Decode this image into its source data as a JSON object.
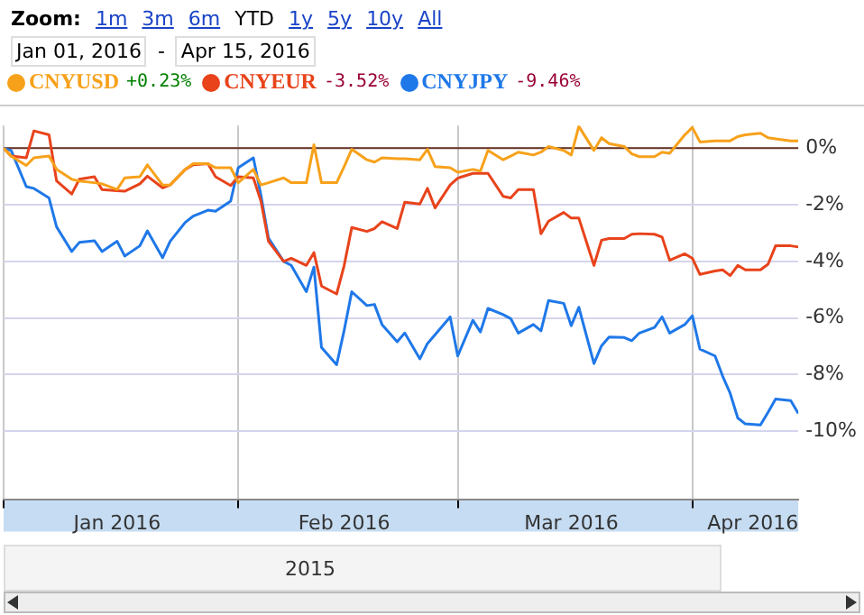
{
  "chart_data": {
    "type": "line",
    "x": [
      "2016-01-01",
      "2016-01-02",
      "2016-01-04",
      "2016-01-05",
      "2016-01-07",
      "2016-01-08",
      "2016-01-10",
      "2016-01-11",
      "2016-01-13",
      "2016-01-14",
      "2016-01-16",
      "2016-01-17",
      "2016-01-19",
      "2016-01-20",
      "2016-01-22",
      "2016-01-23",
      "2016-01-25",
      "2016-01-26",
      "2016-01-28",
      "2016-01-29",
      "2016-01-31",
      "2016-02-01",
      "2016-02-03",
      "2016-02-04",
      "2016-02-05",
      "2016-02-07",
      "2016-02-08",
      "2016-02-10",
      "2016-02-11",
      "2016-02-12",
      "2016-02-14",
      "2016-02-15",
      "2016-02-16",
      "2016-02-18",
      "2016-02-19",
      "2016-02-20",
      "2016-02-22",
      "2016-02-23",
      "2016-02-25",
      "2016-02-26",
      "2016-02-27",
      "2016-02-29",
      "2016-03-01",
      "2016-03-03",
      "2016-03-04",
      "2016-03-05",
      "2016-03-07",
      "2016-03-08",
      "2016-03-09",
      "2016-03-11",
      "2016-03-12",
      "2016-03-13",
      "2016-03-15",
      "2016-03-16",
      "2016-03-17",
      "2016-03-19",
      "2016-03-20",
      "2016-03-21",
      "2016-03-23",
      "2016-03-24",
      "2016-03-25",
      "2016-03-27",
      "2016-03-28",
      "2016-03-29",
      "2016-03-31",
      "2016-04-01",
      "2016-04-02",
      "2016-04-04",
      "2016-04-05",
      "2016-04-06",
      "2016-04-07",
      "2016-04-08",
      "2016-04-10",
      "2016-04-11",
      "2016-04-12",
      "2016-04-14",
      "2016-04-15"
    ],
    "series": [
      {
        "name": "CNYUSD",
        "color": "#f7a11a",
        "values": [
          0,
          -0.28,
          -0.61,
          -0.34,
          -0.28,
          -0.75,
          -1.1,
          -1.16,
          -1.22,
          -1.26,
          -1.46,
          -1.05,
          -1.01,
          -0.59,
          -1.3,
          -1.3,
          -0.75,
          -0.55,
          -0.55,
          -0.69,
          -0.69,
          -1.22,
          -0.75,
          -1.3,
          -1.22,
          -1.05,
          -1.22,
          -1.22,
          0.12,
          -1.22,
          -1.22,
          -0.65,
          -0.04,
          -0.41,
          -0.49,
          -0.34,
          -0.37,
          -0.37,
          -0.41,
          -0.04,
          -0.65,
          -0.69,
          -0.85,
          -0.75,
          -0.81,
          -0.08,
          -0.41,
          -0.28,
          -0.14,
          -0.24,
          -0.14,
          0.06,
          -0.08,
          -0.24,
          0.77,
          -0.08,
          0.37,
          0.16,
          0.06,
          -0.2,
          -0.3,
          -0.3,
          -0.14,
          -0.18,
          0.47,
          0.73,
          0.22,
          0.26,
          0.26,
          0.26,
          0.41,
          0.47,
          0.53,
          0.37,
          0.33,
          0.26,
          0.26
        ]
      },
      {
        "name": "CNYEUR",
        "color": "#e8431b",
        "values": [
          0,
          -0.28,
          -0.34,
          0.61,
          0.47,
          -1.16,
          -1.62,
          -1.1,
          -1.01,
          -1.46,
          -1.5,
          -1.52,
          -1.26,
          -0.99,
          -1.4,
          -1.3,
          -0.75,
          -0.59,
          -0.55,
          -1.01,
          -1.32,
          -1.01,
          -1.05,
          -1.87,
          -3.29,
          -4.0,
          -3.89,
          -4.14,
          -3.69,
          -4.87,
          -5.15,
          -4.14,
          -2.8,
          -2.94,
          -2.84,
          -2.6,
          -2.84,
          -1.91,
          -1.97,
          -1.42,
          -2.11,
          -1.3,
          -1.06,
          -0.89,
          -0.89,
          -0.89,
          -1.7,
          -1.76,
          -1.46,
          -1.46,
          -3.02,
          -2.58,
          -2.27,
          -2.47,
          -2.47,
          -4.14,
          -3.25,
          -3.19,
          -3.19,
          -3.04,
          -3.02,
          -3.04,
          -3.14,
          -3.96,
          -3.73,
          -3.89,
          -4.46,
          -4.34,
          -4.3,
          -4.5,
          -4.14,
          -4.3,
          -4.3,
          -4.1,
          -3.45,
          -3.45,
          -3.49
        ]
      },
      {
        "name": "CNYJPY",
        "color": "#1f78e8",
        "values": [
          0,
          -0.08,
          -1.36,
          -1.42,
          -1.76,
          -2.78,
          -3.65,
          -3.33,
          -3.27,
          -3.65,
          -3.29,
          -3.81,
          -3.45,
          -2.92,
          -3.87,
          -3.29,
          -2.62,
          -2.41,
          -2.19,
          -2.23,
          -1.87,
          -0.69,
          -0.34,
          -1.66,
          -3.18,
          -4.0,
          -4.14,
          -5.07,
          -4.2,
          -7.04,
          -7.65,
          -6.43,
          -5.07,
          -5.56,
          -5.52,
          -6.23,
          -6.84,
          -6.53,
          -7.44,
          -6.9,
          -6.59,
          -5.96,
          -7.34,
          -6.08,
          -6.49,
          -5.66,
          -5.88,
          -6.02,
          -6.53,
          -6.23,
          -6.45,
          -5.38,
          -5.48,
          -6.27,
          -5.62,
          -7.61,
          -6.98,
          -6.67,
          -6.69,
          -6.8,
          -6.53,
          -6.33,
          -5.96,
          -6.53,
          -6.23,
          -5.92,
          -7.1,
          -7.34,
          -8.05,
          -8.66,
          -9.53,
          -9.74,
          -9.78,
          -9.33,
          -8.86,
          -8.92,
          -9.37
        ]
      }
    ],
    "xlim": [
      "2016-01-01",
      "2016-04-15"
    ],
    "xticks": [
      {
        "value": "2016-01-01",
        "label": null
      },
      {
        "value": "2016-01-16",
        "label": "Jan 2016"
      },
      {
        "value": "2016-02-01",
        "label": null
      },
      {
        "value": "2016-02-15",
        "label": "Feb 2016"
      },
      {
        "value": "2016-03-01",
        "label": null
      },
      {
        "value": "2016-03-16",
        "label": "Mar 2016"
      },
      {
        "value": "2016-04-01",
        "label": null
      },
      {
        "value": "2016-04-09",
        "label": "Apr 2016"
      }
    ],
    "ylim": [
      -12.4,
      0.8
    ],
    "yticks": [
      {
        "value": 0,
        "label": "0%"
      },
      {
        "value": -2,
        "label": "-2%"
      },
      {
        "value": -4,
        "label": "-4%"
      },
      {
        "value": -6,
        "label": "-6%"
      },
      {
        "value": -8,
        "label": "-8%"
      },
      {
        "value": -10,
        "label": "-10%"
      }
    ],
    "ref_lines": [
      {
        "axis": "y",
        "value": 0,
        "color": "#663322"
      }
    ],
    "grid": true,
    "legend": "top left",
    "marker": "none",
    "line_style": "solid",
    "annotations": [
      "Zoom:",
      "1m",
      "3m",
      "6m",
      "YTD",
      "1y",
      "5y",
      "10y",
      "All",
      "Jan 01, 2016",
      "-",
      "Apr 15, 2016",
      "+0.23%",
      "-3.52%",
      "-9.46%",
      "2015"
    ]
  }
}
